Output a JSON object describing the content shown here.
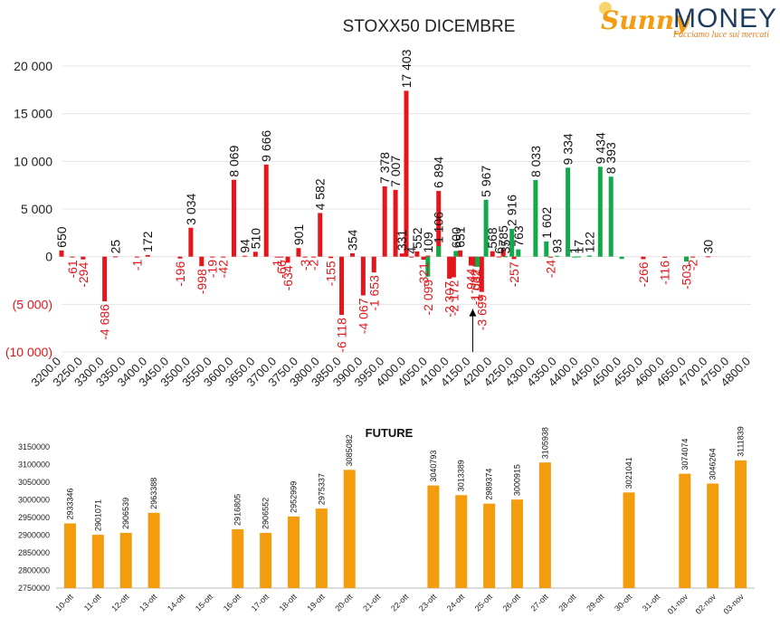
{
  "logo": {
    "brand_part1": "Sunny",
    "brand_part2": "MONEY",
    "tagline": "Facciamo luce sui mercati"
  },
  "chart_data": [
    {
      "type": "bar",
      "title": "STOXX50 DICEMBRE",
      "ylim": [
        -10000,
        20000
      ],
      "yticks": [
        -10000,
        -5000,
        0,
        5000,
        10000,
        15000,
        20000
      ],
      "ytick_labels": [
        "(10 000)",
        "(5 000)",
        "0",
        "5 000",
        "10 000",
        "15 000",
        "20 000"
      ],
      "grid": true,
      "x_tick_labels": [
        "3200.0",
        "3250.0",
        "3300.0",
        "3350.0",
        "3400.0",
        "3450.0",
        "3500.0",
        "3550.0",
        "3600.0",
        "3650.0",
        "3700.0",
        "3750.0",
        "3800.0",
        "3850.0",
        "3900.0",
        "3950.0",
        "4000.0",
        "4050.0",
        "4100.0",
        "4150.0",
        "4200.0",
        "4250.0",
        "4300.0",
        "4350.0",
        "4400.0",
        "4450.0",
        "4500.0",
        "4550.0",
        "4600.0",
        "4650.0",
        "4700.0",
        "4750.0",
        "4800.0"
      ],
      "series": [
        {
          "color": "#e3161b",
          "points": [
            {
              "x": 3200,
              "y": 650,
              "label": "650"
            },
            {
              "x": 3225,
              "y": -61,
              "label": "-61"
            },
            {
              "x": 3250,
              "y": -294,
              "label": "-294"
            },
            {
              "x": 3300,
              "y": -4686,
              "label": "-4 686"
            },
            {
              "x": 3325,
              "y": 25,
              "label": "25"
            },
            {
              "x": 3375,
              "y": -1,
              "label": "-1"
            },
            {
              "x": 3400,
              "y": 172,
              "label": "172"
            },
            {
              "x": 3475,
              "y": -196,
              "label": "-196"
            },
            {
              "x": 3500,
              "y": 3034,
              "label": "3 034"
            },
            {
              "x": 3525,
              "y": -998,
              "label": "-998"
            },
            {
              "x": 3550,
              "y": -19,
              "label": "-19"
            },
            {
              "x": 3575,
              "y": -42,
              "label": "-42"
            },
            {
              "x": 3600,
              "y": 8069,
              "label": "8 069"
            },
            {
              "x": 3625,
              "y": 94,
              "label": "94"
            },
            {
              "x": 3650,
              "y": 510,
              "label": "510"
            },
            {
              "x": 3675,
              "y": 9666,
              "label": "9 666"
            },
            {
              "x": 3700,
              "y": -1,
              "label": "-1"
            },
            {
              "x": 3710,
              "y": -66,
              "label": "-66"
            },
            {
              "x": 3725,
              "y": -634,
              "label": "-634"
            },
            {
              "x": 3750,
              "y": 901,
              "label": "901"
            },
            {
              "x": 3765,
              "y": -3,
              "label": "-3"
            },
            {
              "x": 3785,
              "y": -2,
              "label": "-2"
            },
            {
              "x": 3800,
              "y": 4582,
              "label": "4 582"
            },
            {
              "x": 3825,
              "y": -155,
              "label": "-155"
            },
            {
              "x": 3850,
              "y": -6118,
              "label": "-6 118"
            },
            {
              "x": 3875,
              "y": 354,
              "label": "354"
            },
            {
              "x": 3900,
              "y": -4067,
              "label": "-4 067"
            },
            {
              "x": 3925,
              "y": -1653,
              "label": "-1 653"
            },
            {
              "x": 3950,
              "y": 7378,
              "label": "7 378"
            },
            {
              "x": 3975,
              "y": 7007,
              "label": "7 007"
            },
            {
              "x": 3990,
              "y": 331,
              "label": "331"
            },
            {
              "x": 4000,
              "y": 17403,
              "label": "17 403"
            },
            {
              "x": 4012,
              "y": 4,
              "label": "4"
            },
            {
              "x": 4025,
              "y": 552,
              "label": "552"
            },
            {
              "x": 4040,
              "y": -321,
              "label": "-321"
            },
            {
              "x": 4050,
              "y": 109,
              "label": "109"
            },
            {
              "x": 4075,
              "y": 6894,
              "label": "6 894"
            },
            {
              "x": 4100,
              "y": -2307,
              "label": "-2 307"
            },
            {
              "x": 4110,
              "y": -2172,
              "label": "-2 172"
            },
            {
              "x": 4125,
              "y": 651,
              "label": "651"
            },
            {
              "x": 4150,
              "y": -944,
              "label": "-944"
            },
            {
              "x": 4160,
              "y": -1032,
              "label": "-1 032"
            },
            {
              "x": 4175,
              "y": -3699,
              "label": "-3 699"
            },
            {
              "x": 4200,
              "y": 568,
              "label": "568"
            },
            {
              "x": 4215,
              "y": 6,
              "label": "6"
            },
            {
              "x": 4225,
              "y": 785,
              "label": "785"
            },
            {
              "x": 4250,
              "y": -257,
              "label": "-257"
            },
            {
              "x": 4335,
              "y": -24,
              "label": "-24"
            },
            {
              "x": 4550,
              "y": -266,
              "label": "-266"
            },
            {
              "x": 4600,
              "y": -116,
              "label": "-116"
            },
            {
              "x": 4650,
              "y": -503,
              "label": "-503"
            },
            {
              "x": 4665,
              "y": -2,
              "label": "-2"
            },
            {
              "x": 4700,
              "y": 30,
              "label": "30"
            }
          ]
        },
        {
          "color": "#13a84a",
          "points": [
            {
              "x": 4050,
              "y": -2099,
              "label": "-2 099"
            },
            {
              "x": 4075,
              "y": 1106,
              "label": "1 106"
            },
            {
              "x": 4115,
              "y": 600,
              "label": "600"
            },
            {
              "x": 4165,
              "y": -1062,
              "label": "-1 062"
            },
            {
              "x": 4185,
              "y": 5967,
              "label": "5 967"
            },
            {
              "x": 4230,
              "y": 35,
              "label": "35"
            },
            {
              "x": 4245,
              "y": 2916,
              "label": "2 916"
            },
            {
              "x": 4260,
              "y": 763,
              "label": "763"
            },
            {
              "x": 4300,
              "y": 8033,
              "label": "8 033"
            },
            {
              "x": 4325,
              "y": 1602,
              "label": "1 602"
            },
            {
              "x": 4350,
              "y": 93,
              "label": "93"
            },
            {
              "x": 4375,
              "y": 9334,
              "label": "9 334"
            },
            {
              "x": 4390,
              "y": 1,
              "label": "1"
            },
            {
              "x": 4400,
              "y": 17,
              "label": "17"
            },
            {
              "x": 4425,
              "y": 122,
              "label": "122"
            },
            {
              "x": 4450,
              "y": 9434,
              "label": "9 434"
            },
            {
              "x": 4475,
              "y": 8393,
              "label": "8 393"
            },
            {
              "x": 4500,
              "y": -240,
              "label": ""
            },
            {
              "x": 4650,
              "y": -503,
              "label": ""
            }
          ]
        }
      ],
      "annotation": {
        "type": "arrow",
        "x": 4150,
        "y_from": -10000,
        "y_to": -5500
      }
    },
    {
      "type": "bar",
      "title": "FUTURE",
      "color": "#f39c0e",
      "ylim": [
        2750000,
        3150000
      ],
      "yticks": [
        2750000,
        2800000,
        2850000,
        2900000,
        2950000,
        3000000,
        3050000,
        3100000,
        3150000
      ],
      "categories": [
        "10-ott",
        "11-ott",
        "12-ott",
        "13-ott",
        "14-ott",
        "15-ott",
        "16-ott",
        "17-ott",
        "18-ott",
        "19-ott",
        "20-ott",
        "21-ott",
        "22-ott",
        "23-ott",
        "24-ott",
        "25-ott",
        "26-ott",
        "27-ott",
        "28-ott",
        "29-ott",
        "30-ott",
        "31-ott",
        "01-nov",
        "02-nov",
        "03-nov"
      ],
      "values": [
        2933346,
        2901071,
        2906539,
        2963388,
        null,
        null,
        2916805,
        2906552,
        2952999,
        2975337,
        3085082,
        null,
        null,
        3040793,
        3013389,
        2989374,
        3000915,
        3105938,
        null,
        null,
        3021041,
        null,
        3074074,
        3046264,
        3111839
      ],
      "grid": false
    }
  ]
}
